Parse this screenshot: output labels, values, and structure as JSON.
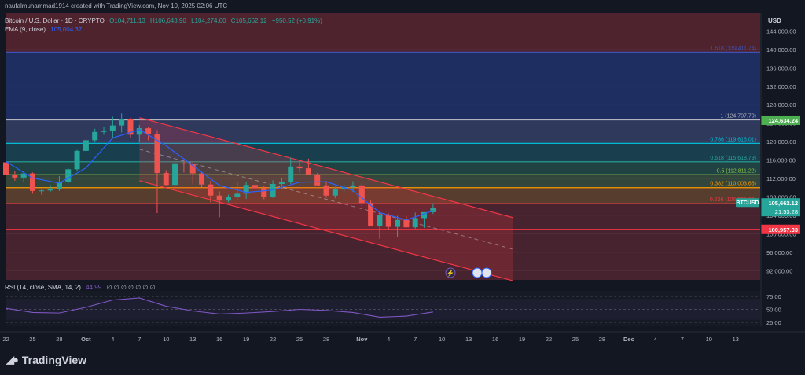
{
  "header": {
    "attribution": "naufalmuhammad1914 created with TradingView.com, Nov 10, 2025 02:06 UTC",
    "symbol": "Bitcoin / U.S. Dollar · 1D · CRYPTO",
    "open": "O104,711.13",
    "high": "H106,643.90",
    "low": "L104,274.60",
    "close": "C105,662.12",
    "change": "+950.52 (+0.91%)",
    "ema_label": "EMA (9, close)",
    "ema_value": "105,004.37",
    "rsi_label": "RSI (14, close, SMA, 14, 2)",
    "rsi_value": "44.99",
    "rsi_placeholders": "∅ ∅ ∅ ∅ ∅ ∅ ∅"
  },
  "currency": "USD",
  "brand": "TradingView",
  "icons": [
    "tradingview-logo-icon",
    "lightning-icon",
    "us-flag-icon"
  ],
  "colors": {
    "bull": "#26a69a",
    "bear": "#ef5350",
    "ema": "#2962ff",
    "rsi": "#7e57c2",
    "channel": "#f23645"
  },
  "chart_data": {
    "type": "candlestick",
    "ylim": [
      90000,
      148000
    ],
    "y_ticks": [
      "92,000.00",
      "96,000.00",
      "100,000.00",
      "104,000.00",
      "108,000.00",
      "112,000.00",
      "116,000.00",
      "120,000.00",
      "124,000.00",
      "128,000.00",
      "132,000.00",
      "136,000.00",
      "140,000.00",
      "144,000.00"
    ],
    "y_tick_values": [
      92000,
      96000,
      100000,
      104000,
      108000,
      112000,
      116000,
      120000,
      124000,
      128000,
      132000,
      136000,
      140000,
      144000
    ],
    "x_ticks": [
      {
        "label": "22",
        "day": 0
      },
      {
        "label": "25",
        "day": 3
      },
      {
        "label": "28",
        "day": 6
      },
      {
        "label": "Oct",
        "day": 9
      },
      {
        "label": "4",
        "day": 12
      },
      {
        "label": "7",
        "day": 15
      },
      {
        "label": "10",
        "day": 18
      },
      {
        "label": "13",
        "day": 21
      },
      {
        "label": "16",
        "day": 24
      },
      {
        "label": "19",
        "day": 27
      },
      {
        "label": "22",
        "day": 30
      },
      {
        "label": "25",
        "day": 33
      },
      {
        "label": "28",
        "day": 36
      },
      {
        "label": "Nov",
        "day": 40
      },
      {
        "label": "4",
        "day": 43
      },
      {
        "label": "7",
        "day": 46
      },
      {
        "label": "10",
        "day": 49
      },
      {
        "label": "13",
        "day": 52
      },
      {
        "label": "16",
        "day": 55
      },
      {
        "label": "19",
        "day": 58
      },
      {
        "label": "22",
        "day": 61
      },
      {
        "label": "25",
        "day": 64
      },
      {
        "label": "28",
        "day": 67
      },
      {
        "label": "Dec",
        "day": 70
      },
      {
        "label": "4",
        "day": 73
      },
      {
        "label": "7",
        "day": 76
      },
      {
        "label": "10",
        "day": 79
      },
      {
        "label": "13",
        "day": 82
      }
    ],
    "candles": [
      [
        115500,
        115700,
        112300,
        112800
      ],
      [
        112800,
        113600,
        111500,
        112200
      ],
      [
        112200,
        113600,
        111300,
        113100
      ],
      [
        113100,
        113300,
        108700,
        109300
      ],
      [
        109300,
        109800,
        108500,
        109400
      ],
      [
        109400,
        110600,
        109100,
        109700
      ],
      [
        109700,
        112500,
        109300,
        111300
      ],
      [
        111300,
        114300,
        110900,
        114000
      ],
      [
        114000,
        118200,
        113600,
        118000
      ],
      [
        118000,
        120500,
        117600,
        120300
      ],
      [
        120300,
        122800,
        119800,
        122100
      ],
      [
        122100,
        123100,
        121500,
        122400
      ],
      [
        122400,
        125400,
        120600,
        123500
      ],
      [
        123500,
        126100,
        122000,
        124800
      ],
      [
        124800,
        125200,
        120800,
        121500
      ],
      [
        121500,
        123600,
        119800,
        122900
      ],
      [
        122900,
        123200,
        120300,
        121700
      ],
      [
        121700,
        122500,
        104500,
        113200
      ],
      [
        113200,
        113800,
        110500,
        110600
      ],
      [
        110600,
        115800,
        110000,
        115300
      ],
      [
        115300,
        116000,
        113300,
        115200
      ],
      [
        115200,
        115600,
        110900,
        113100
      ],
      [
        113100,
        113300,
        110100,
        110700
      ],
      [
        110700,
        111500,
        106800,
        108300
      ],
      [
        108300,
        109200,
        103600,
        107200
      ],
      [
        107200,
        108500,
        106800,
        108000
      ],
      [
        108000,
        111300,
        107400,
        108700
      ],
      [
        108700,
        111200,
        107600,
        110600
      ],
      [
        110600,
        111900,
        109000,
        109900
      ],
      [
        109900,
        110400,
        107500,
        108000
      ],
      [
        108000,
        111600,
        107800,
        110800
      ],
      [
        110800,
        112000,
        109600,
        111200
      ],
      [
        111200,
        116500,
        110800,
        114600
      ],
      [
        114600,
        116100,
        113300,
        114200
      ],
      [
        114200,
        116300,
        113000,
        112900
      ],
      [
        112900,
        113200,
        110600,
        110500
      ],
      [
        110500,
        111200,
        107800,
        108300
      ],
      [
        108300,
        110200,
        107700,
        109600
      ],
      [
        109600,
        110700,
        108900,
        110100
      ],
      [
        110100,
        111400,
        109100,
        110500
      ],
      [
        110500,
        111000,
        106100,
        106700
      ],
      [
        106700,
        107200,
        101600,
        101700
      ],
      [
        101700,
        104800,
        98900,
        104000
      ],
      [
        104000,
        104400,
        100800,
        101500
      ],
      [
        101500,
        103900,
        99300,
        103000
      ],
      [
        103000,
        103800,
        101400,
        101400
      ],
      [
        101400,
        104600,
        101100,
        103400
      ],
      [
        103400,
        104600,
        101300,
        104700
      ],
      [
        104700,
        106600,
        104300,
        105700
      ]
    ],
    "ema": [
      [
        0,
        115700
      ],
      [
        3,
        112100
      ],
      [
        6,
        111000
      ],
      [
        9,
        114300
      ],
      [
        12,
        120800
      ],
      [
        15,
        122600
      ],
      [
        18,
        119100
      ],
      [
        21,
        114800
      ],
      [
        24,
        110500
      ],
      [
        27,
        109000
      ],
      [
        30,
        109500
      ],
      [
        33,
        111200
      ],
      [
        36,
        111300
      ],
      [
        39,
        109400
      ],
      [
        42,
        104600
      ],
      [
        45,
        103000
      ],
      [
        48,
        105000
      ]
    ],
    "rsi": {
      "ylim": [
        25,
        75
      ],
      "ticks": [
        "25.00",
        "50.00",
        "75.00"
      ],
      "tick_values": [
        25,
        50,
        75
      ],
      "values": [
        [
          0,
          52
        ],
        [
          3,
          44
        ],
        [
          6,
          43
        ],
        [
          9,
          54
        ],
        [
          12,
          68
        ],
        [
          15,
          72
        ],
        [
          18,
          56
        ],
        [
          21,
          47
        ],
        [
          24,
          41
        ],
        [
          27,
          43
        ],
        [
          30,
          46
        ],
        [
          33,
          50
        ],
        [
          36,
          48
        ],
        [
          39,
          44
        ],
        [
          42,
          35
        ],
        [
          45,
          37
        ],
        [
          48,
          45
        ]
      ]
    },
    "fibonacci": [
      {
        "label": "1.618 (139,411.74)",
        "value": 139411.74
      },
      {
        "label": "1 (124,707.70)",
        "value": 124707.7
      },
      {
        "label": "0.786 (119,616.01)",
        "value": 119616.01
      },
      {
        "label": "0.618 (115,618.79)",
        "value": 115618.79
      },
      {
        "label": "0.5 (112,811.22)",
        "value": 112811.22
      },
      {
        "label": "0.382 (110,003.66)",
        "value": 110003.66
      },
      {
        "label": "0.236 (106,529.89)",
        "value": 106529.89
      }
    ],
    "price_badges": [
      {
        "label": "124,634.24",
        "value": 124634.24,
        "color": "#4caf50"
      },
      {
        "label": "100,957.33",
        "value": 100957.33,
        "color": "#f23645"
      }
    ],
    "current": {
      "symbol": "BTCUSD",
      "price": "105,662.12",
      "timer": "21:53:28",
      "value": 105662.12
    },
    "channel": {
      "upper": [
        [
          15,
          125200
        ],
        [
          57,
          103500
        ]
      ],
      "lower": [
        [
          15,
          111500
        ],
        [
          57,
          89800
        ]
      ],
      "end_day": 57
    }
  }
}
